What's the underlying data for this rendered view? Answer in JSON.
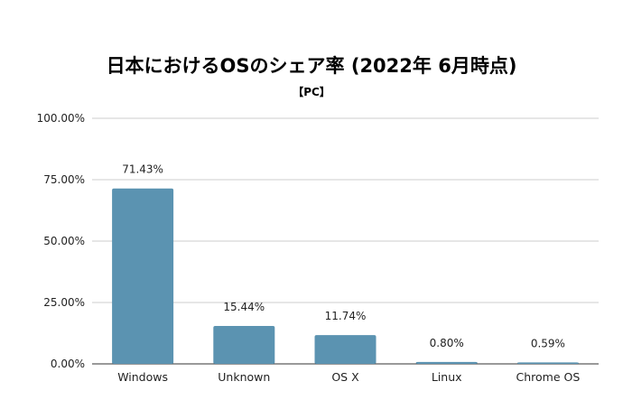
{
  "chart_data": {
    "type": "bar",
    "title": "日本におけるOSのシェア率 (2022年 6月時点)",
    "subtitle": "【PC】",
    "categories": [
      "Windows",
      "Unknown",
      "OS X",
      "Linux",
      "Chrome OS"
    ],
    "values": [
      71.43,
      15.44,
      11.74,
      0.8,
      0.59
    ],
    "data_labels": [
      "71.43%",
      "15.44%",
      "11.74%",
      "0.80%",
      "0.59%"
    ],
    "y_ticks": [
      "0.00%",
      "25.00%",
      "50.00%",
      "75.00%",
      "100.00%"
    ],
    "ylim": [
      0,
      100
    ],
    "grid": true,
    "legend": "none",
    "xlabel": "",
    "ylabel": "",
    "bar_color": "#5b93b1"
  }
}
